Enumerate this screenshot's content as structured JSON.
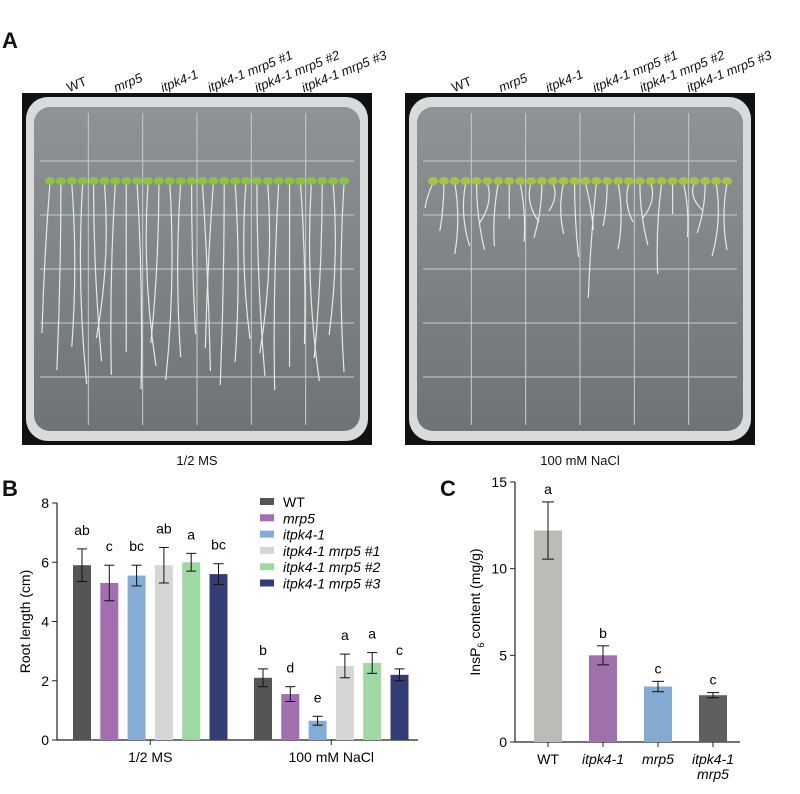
{
  "panels": {
    "a": "A",
    "b": "B",
    "c": "C"
  },
  "panel_a": {
    "genotypes": [
      "WT",
      "mrp5",
      "itpk4-1",
      "itpk4-1 mrp5 #1",
      "itpk4-1 mrp5 #2",
      "itpk4-1 mrp5 #3"
    ],
    "plates": [
      {
        "caption": "1/2 MS",
        "root_level": "long"
      },
      {
        "caption": "100 mM NaCl",
        "root_level": "short"
      }
    ]
  },
  "chart_data": [
    {
      "type": "bar",
      "panel": "B",
      "ylabel": "Root length (cm)",
      "xlabel": "",
      "ylim": [
        0,
        8
      ],
      "yticks": [
        0,
        2,
        4,
        6,
        8
      ],
      "categories": [
        "1/2 MS",
        "100 mM NaCl"
      ],
      "legend_position": "top-right",
      "series": [
        {
          "name": "WT",
          "italic": false,
          "color": "#555555",
          "values": [
            5.9,
            2.1
          ],
          "error": [
            0.55,
            0.3
          ],
          "letters": [
            "ab",
            "b"
          ]
        },
        {
          "name": "mrp5",
          "italic": true,
          "color": "#a46fb0",
          "values": [
            5.3,
            1.55
          ],
          "error": [
            0.6,
            0.25
          ],
          "letters": [
            "c",
            "d"
          ]
        },
        {
          "name": "itpk4-1",
          "italic": true,
          "color": "#86acd6",
          "values": [
            5.55,
            0.65
          ],
          "error": [
            0.35,
            0.15
          ],
          "letters": [
            "bc",
            "e"
          ]
        },
        {
          "name": "itpk4-1 mrp5 #1",
          "italic": true,
          "color": "#d6d6d6",
          "values": [
            5.9,
            2.5
          ],
          "error": [
            0.6,
            0.4
          ],
          "letters": [
            "ab",
            "a"
          ]
        },
        {
          "name": "itpk4-1 mrp5 #2",
          "italic": true,
          "color": "#9fd8a2",
          "values": [
            6.0,
            2.6
          ],
          "error": [
            0.3,
            0.35
          ],
          "letters": [
            "a",
            "a"
          ]
        },
        {
          "name": "itpk4-1 mrp5 #3",
          "italic": true,
          "color": "#333d74",
          "values": [
            5.6,
            2.2
          ],
          "error": [
            0.35,
            0.2
          ],
          "letters": [
            "bc",
            "c"
          ]
        }
      ]
    },
    {
      "type": "bar",
      "panel": "C",
      "ylabel": "InsP",
      "ylabel_sub": "6",
      "ylabel_rest": " content (mg/g)",
      "ylim": [
        0,
        15
      ],
      "yticks": [
        0,
        5,
        10,
        15
      ],
      "categories": [
        [
          "WT"
        ],
        [
          "itpk4-1"
        ],
        [
          "mrp5"
        ],
        [
          "itpk4-1",
          "mrp5"
        ]
      ],
      "category_italic": [
        false,
        true,
        true,
        true
      ],
      "values": [
        12.2,
        5.0,
        3.2,
        2.7
      ],
      "error": [
        1.65,
        0.55,
        0.3,
        0.15
      ],
      "letters": [
        "a",
        "b",
        "c",
        "c"
      ],
      "colors": [
        "#b9bcb7",
        "#a070ad",
        "#86a9d1",
        "#5f5f5f"
      ]
    }
  ]
}
